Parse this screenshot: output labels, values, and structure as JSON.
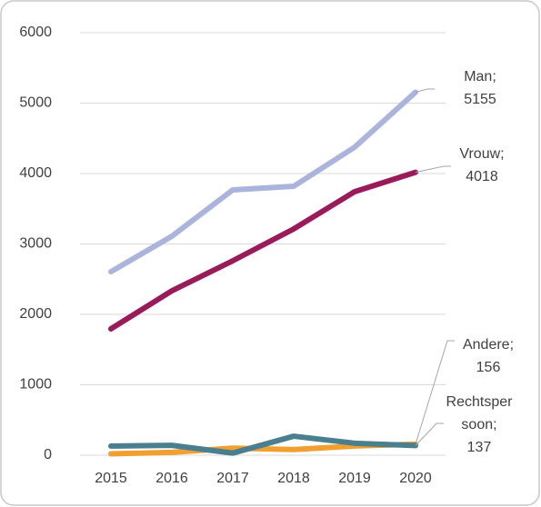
{
  "chart_data": {
    "type": "line",
    "categories": [
      "2015",
      "2016",
      "2017",
      "2018",
      "2019",
      "2020"
    ],
    "series": [
      {
        "name": "Andere",
        "color": "#f0a030",
        "values": [
          20,
          40,
          100,
          80,
          130,
          156
        ],
        "value_labels": [
          null,
          null,
          null,
          null,
          null,
          "Andere; 156"
        ]
      },
      {
        "name": "Rechtspersoon",
        "color": "#4a7f8f",
        "values": [
          130,
          140,
          30,
          270,
          170,
          137
        ],
        "value_labels": [
          null,
          null,
          null,
          null,
          null,
          "Rechtspersoon; 137"
        ]
      },
      {
        "name": "Man",
        "color": "#aab4dd",
        "values": [
          2606,
          3110,
          3768,
          3819,
          4374,
          5155
        ],
        "value_labels": [
          null,
          null,
          null,
          null,
          null,
          "Man; 5155"
        ]
      },
      {
        "name": "Vrouw",
        "color": "#9b1b5a",
        "values": [
          1794,
          2335,
          2761,
          3213,
          3742,
          4018
        ],
        "value_labels": [
          null,
          null,
          null,
          null,
          null,
          "Vrouw; 4018"
        ]
      }
    ],
    "ylim": [
      0,
      6000
    ],
    "yticks": [
      0,
      1000,
      2000,
      3000,
      4000,
      5000,
      6000
    ],
    "grid": true
  }
}
